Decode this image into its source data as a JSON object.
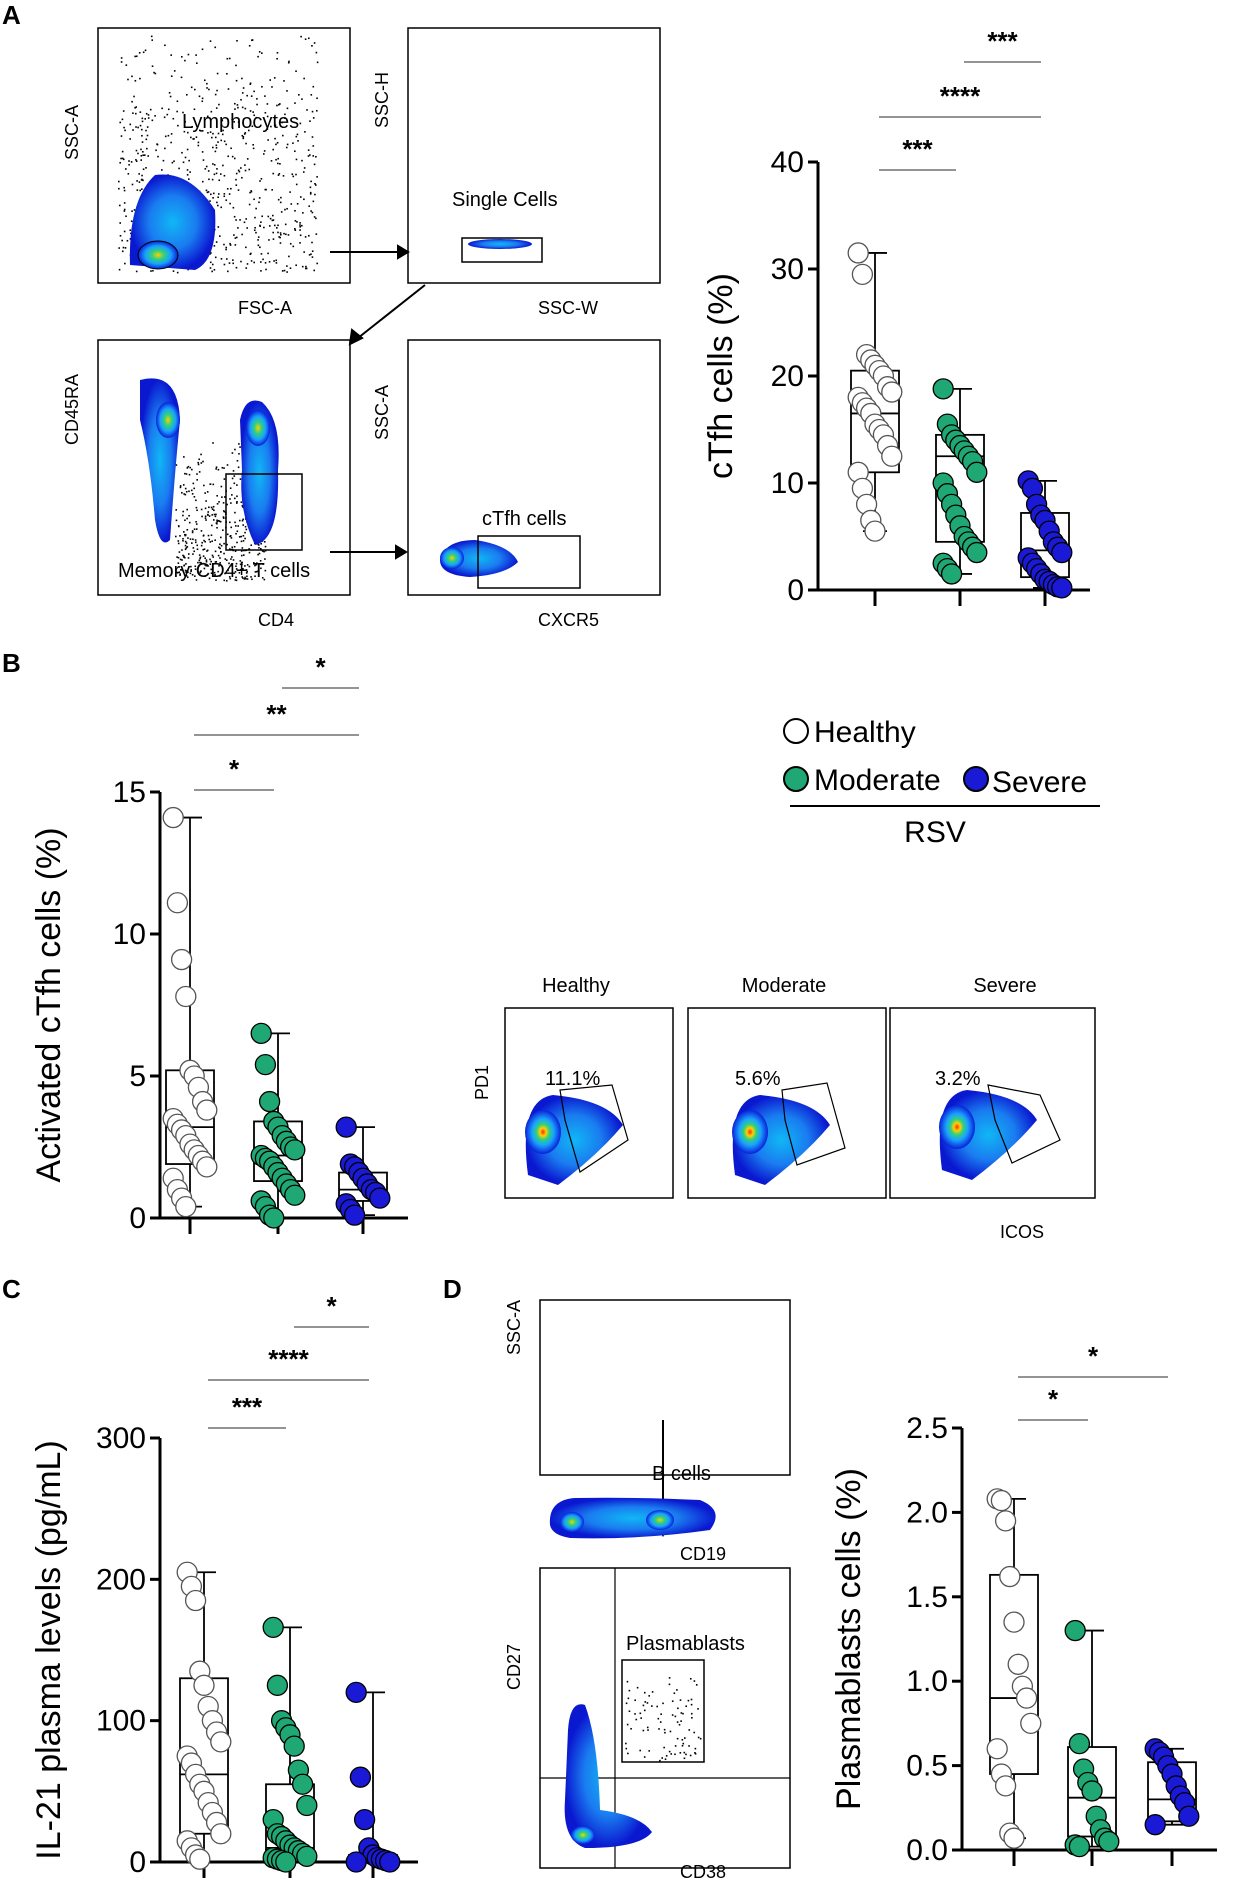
{
  "panel_labels": {
    "a": "A",
    "b": "B",
    "c": "C",
    "d": "D"
  },
  "flow_a": {
    "p1_gate": "Lymphocytes",
    "p1_x": "FSC-A",
    "p1_y": "SSC-A",
    "p2_gate": "Single Cells",
    "p2_x": "SSC-W",
    "p2_y": "SSC-H",
    "p3_gate": "Memory CD4+ T cells",
    "p3_x": "CD4",
    "p3_y": "CD45RA",
    "p4_gate": "cTfh cells",
    "p4_x": "CXCR5",
    "p4_y": "SSC-A"
  },
  "flow_b": {
    "groups": [
      "Healthy",
      "Moderate",
      "Severe"
    ],
    "percents": [
      "11.1%",
      "5.6%",
      "3.2%"
    ],
    "x_label": "ICOS",
    "y_label": "PD1"
  },
  "flow_d": {
    "p1_gate": "B cells",
    "p1_x": "CD19",
    "p1_y": "SSC-A",
    "p2_gate": "Plasmablasts",
    "p2_x": "CD38",
    "p2_y": "CD27"
  },
  "legend": {
    "healthy": "Healthy",
    "moderate": "Moderate",
    "severe": "Severe",
    "group_label": "RSV"
  },
  "colors": {
    "healthy": "#ffffff",
    "moderate": "#1fa874",
    "severe": "#1a1ad6"
  },
  "chart_data": [
    {
      "id": "A",
      "type": "box_scatter",
      "ylabel": "cTfh cells (%)",
      "ylim": [
        0,
        40
      ],
      "yticks": [
        0,
        10,
        20,
        30,
        40
      ],
      "groups": [
        {
          "name": "Healthy",
          "min": 5.5,
          "q1": 11,
          "median": 16.5,
          "q3": 20.5,
          "max": 31.5,
          "points": [
            31.5,
            29.5,
            22,
            21.5,
            21,
            20.5,
            20,
            19,
            18.5,
            18,
            17.5,
            17,
            16.5,
            15.5,
            15,
            14.5,
            13.5,
            12.5,
            11,
            9.5,
            8,
            6.5,
            5.5
          ]
        },
        {
          "name": "Moderate",
          "min": 1.5,
          "q1": 4.5,
          "median": 12.5,
          "q3": 14.5,
          "max": 18.8,
          "points": [
            18.8,
            15.5,
            14.5,
            14,
            13.5,
            13,
            12.5,
            12,
            11,
            10,
            9,
            8,
            7,
            6,
            5,
            4.5,
            4,
            3.5,
            2.5,
            2,
            1.5
          ]
        },
        {
          "name": "Severe",
          "min": 0.2,
          "q1": 1.2,
          "median": 3.7,
          "q3": 7.2,
          "max": 10.2,
          "points": [
            10.2,
            9.5,
            8,
            7,
            6.5,
            5.5,
            4.5,
            4,
            3.5,
            3,
            2.5,
            2,
            1.5,
            1,
            0.8,
            0.5,
            0.3,
            0.2
          ]
        }
      ],
      "significance": [
        {
          "from": 0,
          "to": 1,
          "label": "***"
        },
        {
          "from": 0,
          "to": 2,
          "label": "****"
        },
        {
          "from": 1,
          "to": 2,
          "label": "***"
        }
      ]
    },
    {
      "id": "B",
      "type": "box_scatter",
      "ylabel": "Activated cTfh cells (%)",
      "ylim": [
        0,
        15
      ],
      "yticks": [
        0,
        5,
        10,
        15
      ],
      "groups": [
        {
          "name": "Healthy",
          "min": 0.4,
          "q1": 1.9,
          "median": 3.2,
          "q3": 5.2,
          "max": 14.1,
          "points": [
            14.1,
            11.1,
            9.1,
            7.8,
            5.2,
            5.0,
            4.6,
            4.1,
            3.8,
            3.5,
            3.3,
            3.1,
            2.9,
            2.6,
            2.4,
            2.2,
            2.0,
            1.8,
            1.4,
            1.0,
            0.7,
            0.4
          ]
        },
        {
          "name": "Moderate",
          "min": 0.0,
          "q1": 1.3,
          "median": 2.2,
          "q3": 3.4,
          "max": 6.5,
          "points": [
            6.5,
            5.4,
            4.1,
            3.4,
            3.2,
            2.9,
            2.7,
            2.5,
            2.4,
            2.2,
            2.1,
            2.0,
            1.8,
            1.6,
            1.4,
            1.2,
            1.0,
            0.8,
            0.6,
            0.4,
            0.1,
            0.0
          ]
        },
        {
          "name": "Severe",
          "min": 0.1,
          "q1": 0.6,
          "median": 1.0,
          "q3": 1.6,
          "max": 3.2,
          "points": [
            3.2,
            1.9,
            1.8,
            1.6,
            1.4,
            1.2,
            1.0,
            0.9,
            0.7,
            0.5,
            0.3,
            0.1
          ]
        }
      ],
      "significance": [
        {
          "from": 0,
          "to": 1,
          "label": "*"
        },
        {
          "from": 0,
          "to": 2,
          "label": "**"
        },
        {
          "from": 1,
          "to": 2,
          "label": "*"
        }
      ]
    },
    {
      "id": "C",
      "type": "box_scatter",
      "ylabel": "IL-21 plasma levels (pg/mL)",
      "ylim": [
        0,
        300
      ],
      "yticks": [
        0,
        100,
        200,
        300
      ],
      "groups": [
        {
          "name": "Healthy",
          "min": 0,
          "q1": 20,
          "median": 62,
          "q3": 130,
          "max": 205,
          "points": [
            205,
            195,
            185,
            135,
            125,
            110,
            100,
            92,
            85,
            75,
            70,
            62,
            55,
            50,
            42,
            35,
            28,
            20,
            15,
            10,
            5,
            2
          ]
        },
        {
          "name": "Moderate",
          "min": 0,
          "q1": 2,
          "median": 10,
          "q3": 55,
          "max": 166,
          "points": [
            166,
            125,
            100,
            95,
            90,
            82,
            65,
            55,
            40,
            30,
            20,
            18,
            15,
            12,
            10,
            8,
            6,
            4,
            3,
            2,
            1,
            0
          ]
        },
        {
          "name": "Severe",
          "min": 0,
          "q1": 0,
          "median": 2,
          "q3": 5,
          "max": 120,
          "points": [
            120,
            60,
            30,
            10,
            5,
            3,
            2,
            1,
            0,
            0
          ]
        }
      ],
      "significance": [
        {
          "from": 0,
          "to": 1,
          "label": "***"
        },
        {
          "from": 0,
          "to": 2,
          "label": "****"
        },
        {
          "from": 1,
          "to": 2,
          "label": "*"
        }
      ]
    },
    {
      "id": "D",
      "type": "box_scatter",
      "ylabel": "Plasmablasts cells (%)",
      "ylim": [
        0,
        2.5
      ],
      "yticks": [
        0,
        0.5,
        1.0,
        1.5,
        2.0,
        2.5
      ],
      "ytick_labels": [
        "0.0",
        "0.5",
        "1.0",
        "1.5",
        "2.0",
        "2.5"
      ],
      "groups": [
        {
          "name": "Healthy",
          "min": 0.07,
          "q1": 0.45,
          "median": 0.9,
          "q3": 1.63,
          "max": 2.08,
          "points": [
            2.08,
            2.07,
            1.95,
            1.62,
            1.35,
            1.1,
            0.97,
            0.9,
            0.75,
            0.6,
            0.45,
            0.38,
            0.1,
            0.07
          ]
        },
        {
          "name": "Moderate",
          "min": 0.02,
          "q1": 0.08,
          "median": 0.31,
          "q3": 0.61,
          "max": 1.3,
          "points": [
            1.3,
            0.63,
            0.48,
            0.4,
            0.35,
            0.2,
            0.12,
            0.07,
            0.05,
            0.03,
            0.02
          ]
        },
        {
          "name": "Severe",
          "min": 0.15,
          "q1": 0.17,
          "median": 0.3,
          "q3": 0.52,
          "max": 0.6,
          "points": [
            0.6,
            0.58,
            0.55,
            0.5,
            0.45,
            0.38,
            0.32,
            0.28,
            0.2,
            0.15
          ]
        }
      ],
      "significance": [
        {
          "from": 0,
          "to": 1,
          "label": "*"
        },
        {
          "from": 0,
          "to": 2,
          "label": "*"
        }
      ]
    }
  ]
}
